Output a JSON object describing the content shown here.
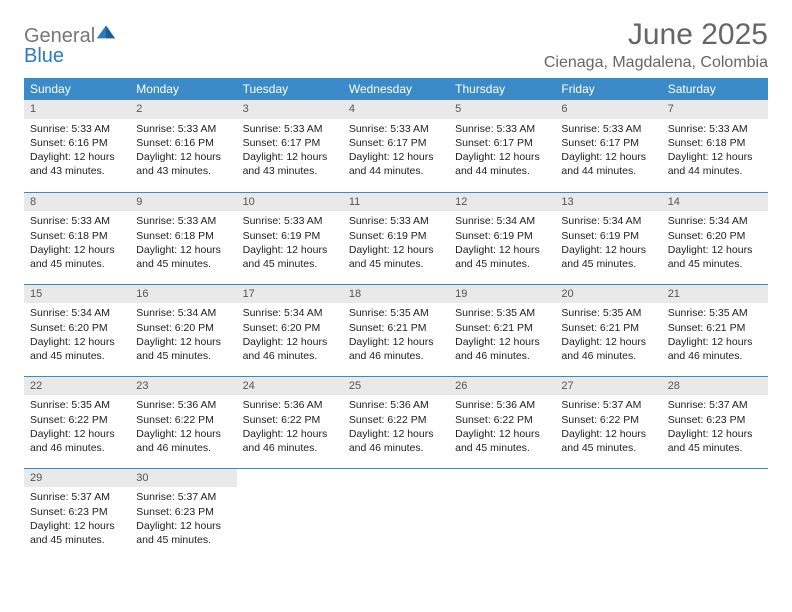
{
  "logo": {
    "line1": "General",
    "line2": "Blue"
  },
  "header": {
    "title": "June 2025",
    "location": "Cienaga, Magdalena, Colombia"
  },
  "colors": {
    "header_bg": "#3b8bc9",
    "header_fg": "#ffffff",
    "daynum_bg": "#e9e9e9",
    "row_border": "#3b8bc9",
    "logo_blue": "#2a7bbf",
    "logo_gray": "#777777",
    "title_color": "#666666"
  },
  "weekdays": [
    "Sunday",
    "Monday",
    "Tuesday",
    "Wednesday",
    "Thursday",
    "Friday",
    "Saturday"
  ],
  "labels": {
    "sunrise": "Sunrise:",
    "sunset": "Sunset:",
    "daylight": "Daylight:"
  },
  "days": [
    {
      "n": 1,
      "sr": "5:33 AM",
      "ss": "6:16 PM",
      "dl": "12 hours and 43 minutes."
    },
    {
      "n": 2,
      "sr": "5:33 AM",
      "ss": "6:16 PM",
      "dl": "12 hours and 43 minutes."
    },
    {
      "n": 3,
      "sr": "5:33 AM",
      "ss": "6:17 PM",
      "dl": "12 hours and 43 minutes."
    },
    {
      "n": 4,
      "sr": "5:33 AM",
      "ss": "6:17 PM",
      "dl": "12 hours and 44 minutes."
    },
    {
      "n": 5,
      "sr": "5:33 AM",
      "ss": "6:17 PM",
      "dl": "12 hours and 44 minutes."
    },
    {
      "n": 6,
      "sr": "5:33 AM",
      "ss": "6:17 PM",
      "dl": "12 hours and 44 minutes."
    },
    {
      "n": 7,
      "sr": "5:33 AM",
      "ss": "6:18 PM",
      "dl": "12 hours and 44 minutes."
    },
    {
      "n": 8,
      "sr": "5:33 AM",
      "ss": "6:18 PM",
      "dl": "12 hours and 45 minutes."
    },
    {
      "n": 9,
      "sr": "5:33 AM",
      "ss": "6:18 PM",
      "dl": "12 hours and 45 minutes."
    },
    {
      "n": 10,
      "sr": "5:33 AM",
      "ss": "6:19 PM",
      "dl": "12 hours and 45 minutes."
    },
    {
      "n": 11,
      "sr": "5:33 AM",
      "ss": "6:19 PM",
      "dl": "12 hours and 45 minutes."
    },
    {
      "n": 12,
      "sr": "5:34 AM",
      "ss": "6:19 PM",
      "dl": "12 hours and 45 minutes."
    },
    {
      "n": 13,
      "sr": "5:34 AM",
      "ss": "6:19 PM",
      "dl": "12 hours and 45 minutes."
    },
    {
      "n": 14,
      "sr": "5:34 AM",
      "ss": "6:20 PM",
      "dl": "12 hours and 45 minutes."
    },
    {
      "n": 15,
      "sr": "5:34 AM",
      "ss": "6:20 PM",
      "dl": "12 hours and 45 minutes."
    },
    {
      "n": 16,
      "sr": "5:34 AM",
      "ss": "6:20 PM",
      "dl": "12 hours and 45 minutes."
    },
    {
      "n": 17,
      "sr": "5:34 AM",
      "ss": "6:20 PM",
      "dl": "12 hours and 46 minutes."
    },
    {
      "n": 18,
      "sr": "5:35 AM",
      "ss": "6:21 PM",
      "dl": "12 hours and 46 minutes."
    },
    {
      "n": 19,
      "sr": "5:35 AM",
      "ss": "6:21 PM",
      "dl": "12 hours and 46 minutes."
    },
    {
      "n": 20,
      "sr": "5:35 AM",
      "ss": "6:21 PM",
      "dl": "12 hours and 46 minutes."
    },
    {
      "n": 21,
      "sr": "5:35 AM",
      "ss": "6:21 PM",
      "dl": "12 hours and 46 minutes."
    },
    {
      "n": 22,
      "sr": "5:35 AM",
      "ss": "6:22 PM",
      "dl": "12 hours and 46 minutes."
    },
    {
      "n": 23,
      "sr": "5:36 AM",
      "ss": "6:22 PM",
      "dl": "12 hours and 46 minutes."
    },
    {
      "n": 24,
      "sr": "5:36 AM",
      "ss": "6:22 PM",
      "dl": "12 hours and 46 minutes."
    },
    {
      "n": 25,
      "sr": "5:36 AM",
      "ss": "6:22 PM",
      "dl": "12 hours and 46 minutes."
    },
    {
      "n": 26,
      "sr": "5:36 AM",
      "ss": "6:22 PM",
      "dl": "12 hours and 45 minutes."
    },
    {
      "n": 27,
      "sr": "5:37 AM",
      "ss": "6:22 PM",
      "dl": "12 hours and 45 minutes."
    },
    {
      "n": 28,
      "sr": "5:37 AM",
      "ss": "6:23 PM",
      "dl": "12 hours and 45 minutes."
    },
    {
      "n": 29,
      "sr": "5:37 AM",
      "ss": "6:23 PM",
      "dl": "12 hours and 45 minutes."
    },
    {
      "n": 30,
      "sr": "5:37 AM",
      "ss": "6:23 PM",
      "dl": "12 hours and 45 minutes."
    }
  ],
  "grid": {
    "columns": 7,
    "rows": 5,
    "start_weekday_index": 0
  }
}
